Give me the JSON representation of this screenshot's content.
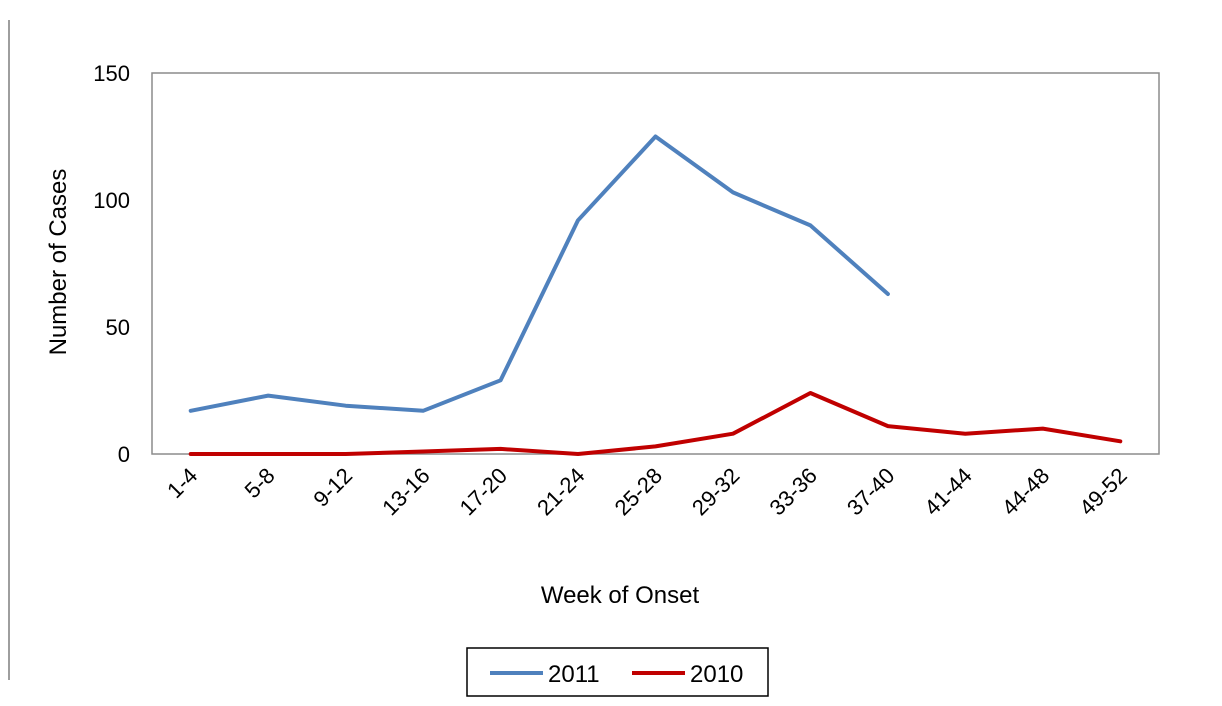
{
  "chart_data": {
    "type": "line",
    "title": "",
    "xlabel": "Week of Onset",
    "ylabel": "Number of Cases",
    "ylim": [
      0,
      150
    ],
    "yticks": [
      0,
      50,
      100,
      150
    ],
    "grid": false,
    "legend_position": "bottom",
    "categories": [
      "1-4",
      "5-8",
      "9-12",
      "13-16",
      "17-20",
      "21-24",
      "25-28",
      "29-32",
      "33-36",
      "37-40",
      "41-44",
      "44-48",
      "49-52"
    ],
    "series": [
      {
        "name": "2011",
        "color": "#4f81bd",
        "values": [
          17,
          23,
          19,
          17,
          29,
          92,
          125,
          103,
          90,
          63,
          null,
          null,
          null
        ]
      },
      {
        "name": "2010",
        "color": "#c00000",
        "values": [
          0,
          0,
          0,
          1,
          2,
          0,
          3,
          8,
          24,
          11,
          8,
          10,
          5
        ]
      }
    ]
  }
}
